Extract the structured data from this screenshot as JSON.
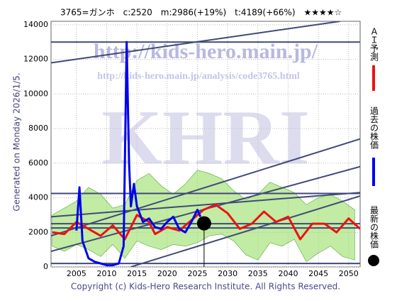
{
  "chart_data": {
    "type": "line",
    "title": "3765=ガンホ　c:2520　m:2986(+19%)　t:4189(+66%)　★★★★☆",
    "side_note": "Generated on Monday 2026/1/5.",
    "footer": "Copyright (c) Kids-Hero Research Institute. All Rights Reserved.",
    "watermarks": [
      "http://kids-hero.main.jp/",
      "http://kids-hero.main.jp/analysis/code3765.html",
      "KHRI"
    ],
    "xlim": [
      2000.8,
      2051.9
    ],
    "ylim": [
      0,
      14200
    ],
    "xticks": [
      2005,
      2010,
      2015,
      2020,
      2025,
      2030,
      2035,
      2040,
      2045,
      2050
    ],
    "yticks": [
      0,
      2000,
      4000,
      6000,
      8000,
      10000,
      12000,
      14000
    ],
    "grid": true,
    "band": {
      "color": "#99dd66",
      "x": [
        2001,
        2003,
        2005,
        2007,
        2009,
        2011,
        2013,
        2015,
        2017,
        2019,
        2021,
        2023,
        2025,
        2027,
        2029,
        2031,
        2033,
        2035,
        2037,
        2039,
        2041,
        2043,
        2045,
        2047,
        2049,
        2051
      ],
      "upper": [
        3000,
        3400,
        3800,
        4600,
        4200,
        3400,
        3600,
        5000,
        5400,
        4700,
        4200,
        4800,
        5600,
        5400,
        5100,
        4400,
        3900,
        4200,
        4900,
        4600,
        4300,
        3600,
        4000,
        4200,
        3800,
        3300
      ],
      "lower": [
        1200,
        900,
        1300,
        1000,
        600,
        1300,
        500,
        1500,
        1200,
        1000,
        1300,
        1200,
        1400,
        1800,
        1900,
        1500,
        700,
        400,
        1400,
        1200,
        1600,
        300,
        800,
        1200,
        600,
        400
      ]
    },
    "hlines": [
      13000,
      4250,
      2500,
      2250,
      200
    ],
    "line_color": "#404a7a",
    "trend_lines": [
      {
        "x": [
          2000.8,
          2048.6
        ],
        "y": [
          11800,
          14200
        ]
      },
      {
        "x": [
          2000.8,
          2051.9
        ],
        "y": [
          900,
          5800
        ]
      },
      {
        "x": [
          2000.8,
          2051.9
        ],
        "y": [
          1800,
          7400
        ]
      },
      {
        "x": [
          2014,
          2051.9
        ],
        "y": [
          0,
          4100
        ]
      },
      {
        "x": [
          2000.8,
          2051.9
        ],
        "y": [
          2900,
          4300
        ]
      }
    ],
    "series": [
      {
        "name": "ＡＩ予測",
        "color": "#ee1111",
        "x": [
          2001,
          2003,
          2005,
          2007,
          2009,
          2011,
          2013,
          2015,
          2017,
          2018,
          2020,
          2022,
          2024,
          2026,
          2028,
          2030,
          2032,
          2034,
          2036,
          2038,
          2040,
          2042,
          2044,
          2046,
          2048,
          2050,
          2051.9
        ],
        "values": [
          2000,
          1900,
          2600,
          2200,
          1800,
          2400,
          1600,
          3000,
          2600,
          1900,
          2300,
          2100,
          2700,
          3300,
          3600,
          3100,
          2200,
          2500,
          3200,
          2600,
          2900,
          1600,
          2500,
          2500,
          2000,
          2800,
          2200
        ]
      },
      {
        "name": "過去の株価",
        "color": "#0000ee",
        "x": [
          2005,
          2005.5,
          2006,
          2007,
          2008,
          2009,
          2010,
          2011,
          2012,
          2012.8,
          2013.3,
          2013.7,
          2014,
          2014.5,
          2015,
          2016,
          2017,
          2018,
          2019,
          2020,
          2021,
          2022,
          2023,
          2024,
          2025,
          2025.5
        ],
        "values": [
          2100,
          4600,
          1500,
          500,
          300,
          200,
          100,
          100,
          200,
          1200,
          13000,
          6000,
          3500,
          4800,
          3500,
          2600,
          2800,
          2300,
          2200,
          2600,
          2900,
          2200,
          2000,
          2600,
          3300,
          2900
        ]
      },
      {
        "name": "最新の株価",
        "color": "#000000",
        "style": "dot",
        "x": [
          2026.1
        ],
        "values": [
          2520
        ]
      }
    ]
  }
}
